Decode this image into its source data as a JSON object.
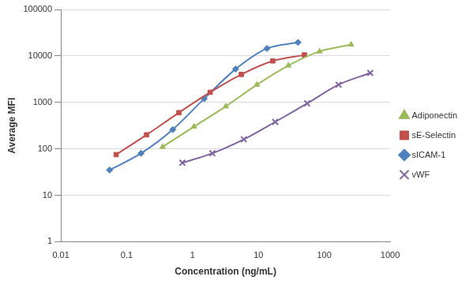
{
  "chart_data": {
    "type": "line",
    "x_label": "Concentration (ng/mL)",
    "y_label": "Average MFI",
    "log": true,
    "grid": "y",
    "legend": "right",
    "xlim": [
      0.01,
      1000
    ],
    "xticks": [
      0.01,
      0.1,
      1,
      10,
      100,
      1000
    ],
    "ylim": [
      1,
      100000
    ],
    "yticks": [
      1,
      10,
      100,
      1000,
      10000,
      100000
    ],
    "series": [
      {
        "name": "Adiponectin",
        "color": "#9bbb59",
        "marker": "triangle",
        "line_style": "solid",
        "x": [
          0.35,
          1.05,
          3.2,
          9.5,
          28.5,
          85,
          256
        ],
        "values": [
          110,
          300,
          820,
          2400,
          6200,
          12500,
          17500
        ]
      },
      {
        "name": "sE-Selectin",
        "color": "#c0504d",
        "marker": "square",
        "line_style": "solid",
        "x": [
          0.069,
          0.2,
          0.62,
          1.85,
          5.5,
          16.5,
          50
        ],
        "values": [
          75,
          200,
          600,
          1650,
          4000,
          7800,
          10500
        ]
      },
      {
        "name": "sICAM-1",
        "color": "#4f81bd",
        "marker": "diamond",
        "line_style": "solid",
        "x": [
          0.055,
          0.165,
          0.5,
          1.5,
          4.5,
          13.5,
          40
        ],
        "values": [
          35,
          80,
          260,
          1200,
          5200,
          14500,
          19500
        ]
      },
      {
        "name": "vWF",
        "color": "#8064a2",
        "marker": "cross",
        "line_style": "solid",
        "x": [
          0.7,
          2,
          6,
          18,
          55,
          165,
          500
        ],
        "values": [
          50,
          80,
          160,
          380,
          950,
          2400,
          4300
        ]
      }
    ]
  }
}
